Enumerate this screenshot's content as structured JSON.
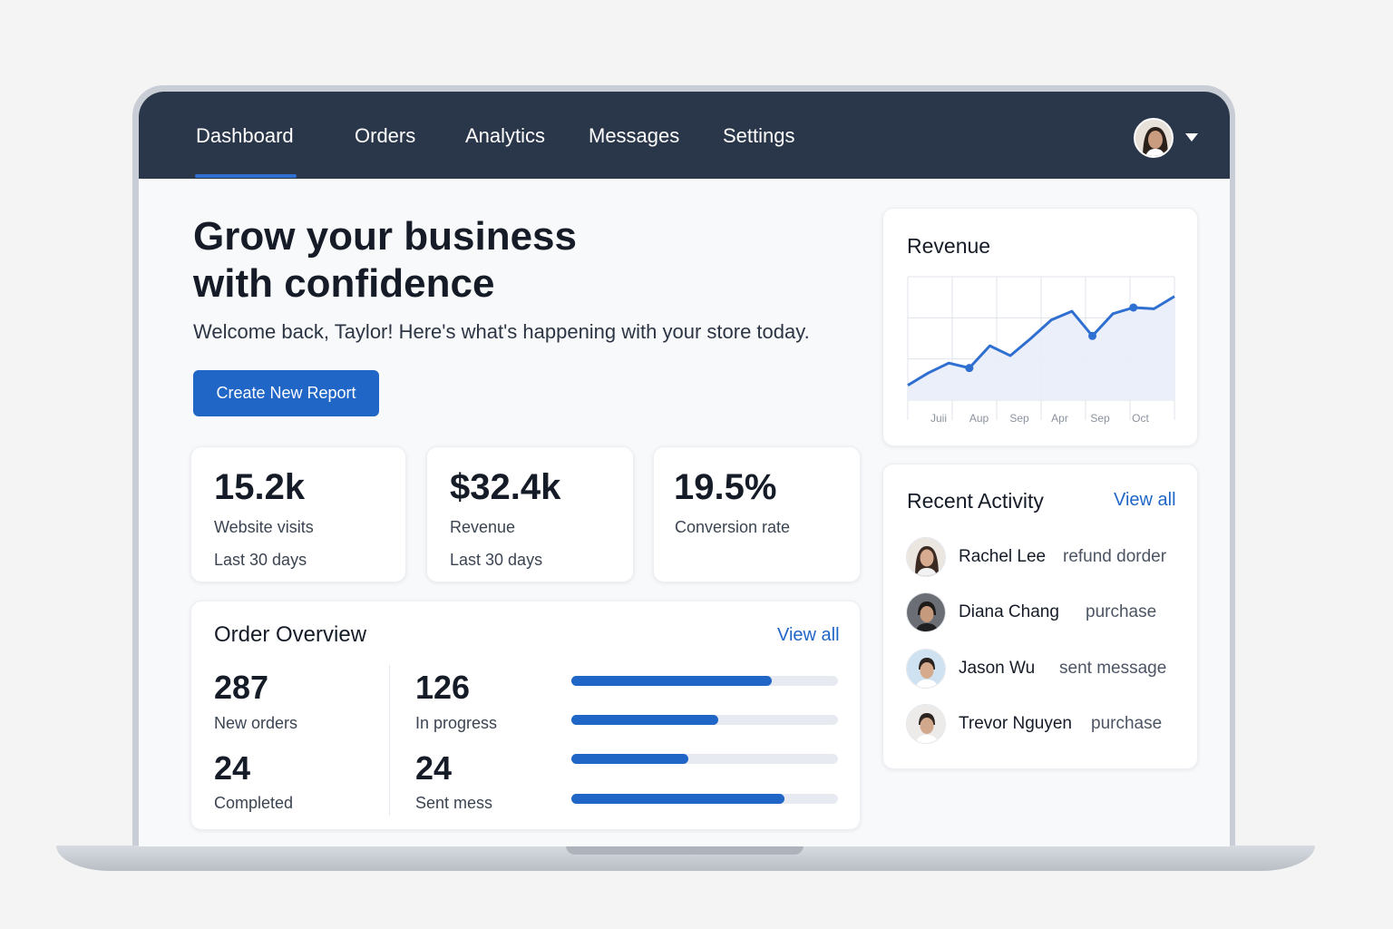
{
  "nav": {
    "items": [
      {
        "label": "Dashboard",
        "active": true
      },
      {
        "label": "Orders"
      },
      {
        "label": "Analytics"
      },
      {
        "label": "Messages"
      },
      {
        "label": "Settings"
      }
    ]
  },
  "hero": {
    "title_line1": "Grow your business",
    "title_line2": "with confidence",
    "subtitle": "Welcome back, Taylor! Here's what's happening with your store today.",
    "cta_label": "Create New Report"
  },
  "stats": [
    {
      "value": "15.2k",
      "label": "Website visits",
      "period": "Last 30 days"
    },
    {
      "value": "$32.4k",
      "label": "Revenue",
      "period": "Last 30 days"
    },
    {
      "value": "19.5%",
      "label": "Conversion rate"
    }
  ],
  "order_overview": {
    "title": "Order Overview",
    "view_all": "View all",
    "metrics": [
      {
        "value": "287",
        "label": "New orders"
      },
      {
        "value": "24",
        "label": "Completed"
      },
      {
        "value": "126",
        "label": "In progress"
      },
      {
        "value": "24",
        "label": "Sent mess"
      }
    ],
    "progress": [
      0.75,
      0.55,
      0.44,
      0.8
    ]
  },
  "revenue_card": {
    "title": "Revenue"
  },
  "chart_data": {
    "type": "area",
    "title": "Revenue",
    "x_ticks": [
      "Juii",
      "Aup",
      "Sep",
      "Apr",
      "Sep",
      "Oct"
    ],
    "series": [
      {
        "values": [
          12,
          22,
          30,
          26,
          44,
          36,
          50,
          65,
          72,
          52,
          70,
          75,
          74,
          84
        ]
      }
    ],
    "ylim": [
      0,
      100
    ],
    "grid": true,
    "color": "#2f6fd1"
  },
  "activity": {
    "title": "Recent Activity",
    "view_all": "View all",
    "items": [
      {
        "name": "Rachel Lee",
        "action": "refund dorder"
      },
      {
        "name": "Diana Chang",
        "action": "purchase"
      },
      {
        "name": "Jason Wu",
        "action": "sent message"
      },
      {
        "name": "Trevor Nguyen",
        "action": "purchase"
      }
    ]
  },
  "colors": {
    "nav_bg": "#2a3649",
    "accent": "#1f66c7"
  }
}
